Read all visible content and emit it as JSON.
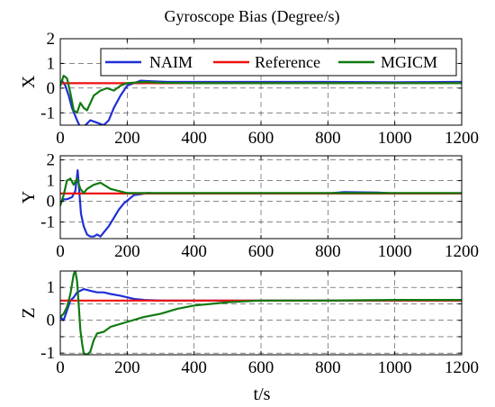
{
  "title": "Gyroscope Bias (Degree/s)",
  "xlabel": "t/s",
  "legend": {
    "placement": "top-right",
    "entries": [
      "NAIM",
      "Reference",
      "MGICM"
    ]
  },
  "colors": {
    "NAIM": "#1f2fd6",
    "Reference": "#ee1111",
    "MGICM": "#117a11"
  },
  "chart_data": [
    {
      "type": "line",
      "ylabel": "X",
      "xlim": [
        0,
        1200
      ],
      "ylim": [
        -1.5,
        2
      ],
      "xticks": [
        0,
        200,
        400,
        600,
        800,
        1000,
        1200
      ],
      "yticks": [
        -1,
        0,
        1,
        2
      ],
      "grid": true,
      "series": [
        {
          "name": "NAIM",
          "x": [
            0,
            5,
            15,
            25,
            35,
            50,
            60,
            75,
            90,
            110,
            130,
            145,
            160,
            180,
            200,
            220,
            240,
            270,
            320,
            400,
            600,
            800,
            1000,
            1200
          ],
          "y": [
            0.1,
            0.3,
            0.1,
            -0.3,
            -0.8,
            -1.3,
            -1.6,
            -1.5,
            -1.3,
            -1.4,
            -1.5,
            -1.3,
            -0.8,
            -0.3,
            0.1,
            0.2,
            0.3,
            0.28,
            0.25,
            0.25,
            0.25,
            0.25,
            0.24,
            0.25
          ]
        },
        {
          "name": "Reference",
          "x": [
            0,
            1200
          ],
          "y": [
            0.2,
            0.2
          ]
        },
        {
          "name": "MGICM",
          "x": [
            0,
            10,
            20,
            30,
            40,
            50,
            60,
            70,
            80,
            100,
            120,
            140,
            160,
            180,
            200,
            250,
            300,
            400,
            600,
            800,
            1000,
            1200
          ],
          "y": [
            0.1,
            0.5,
            0.4,
            -0.2,
            -0.9,
            -1.0,
            -0.6,
            -0.8,
            -0.9,
            -0.3,
            -0.1,
            0.0,
            -0.1,
            0.1,
            0.2,
            0.25,
            0.22,
            0.2,
            0.2,
            0.2,
            0.2,
            0.2
          ]
        }
      ]
    },
    {
      "type": "line",
      "ylabel": "Y",
      "xlim": [
        0,
        1200
      ],
      "ylim": [
        -1.8,
        2.2
      ],
      "xticks": [
        0,
        200,
        400,
        600,
        800,
        1000,
        1200
      ],
      "yticks": [
        -1,
        0,
        1,
        2
      ],
      "grid": true,
      "series": [
        {
          "name": "NAIM",
          "x": [
            0,
            10,
            20,
            35,
            45,
            52,
            58,
            62,
            70,
            80,
            90,
            100,
            110,
            120,
            130,
            145,
            160,
            175,
            190,
            205,
            220,
            240,
            260,
            300,
            400,
            800,
            850,
            950,
            1000,
            1200
          ],
          "y": [
            -0.1,
            0.1,
            0.1,
            0.2,
            0.5,
            1.5,
            0.2,
            -0.6,
            -1.2,
            -1.6,
            -1.7,
            -1.7,
            -1.6,
            -1.7,
            -1.5,
            -1.2,
            -0.8,
            -0.4,
            -0.1,
            0.1,
            0.3,
            0.35,
            0.4,
            0.38,
            0.38,
            0.38,
            0.45,
            0.42,
            0.38,
            0.38
          ]
        },
        {
          "name": "Reference",
          "x": [
            0,
            1200
          ],
          "y": [
            0.38,
            0.38
          ]
        },
        {
          "name": "MGICM",
          "x": [
            0,
            10,
            20,
            30,
            40,
            50,
            60,
            70,
            80,
            100,
            120,
            150,
            200,
            300,
            500,
            800,
            1000,
            1200
          ],
          "y": [
            -0.2,
            0.3,
            1.0,
            1.1,
            0.8,
            1.1,
            0.6,
            0.4,
            0.6,
            0.8,
            0.9,
            0.6,
            0.4,
            0.4,
            0.4,
            0.4,
            0.4,
            0.4
          ]
        }
      ]
    },
    {
      "type": "line",
      "ylabel": "Z",
      "xlim": [
        0,
        1200
      ],
      "ylim": [
        -1.05,
        1.5
      ],
      "xticks": [
        0,
        200,
        400,
        600,
        800,
        1000,
        1200
      ],
      "yticks": [
        -1,
        -0.5,
        0,
        0.5,
        1
      ],
      "yticklabels": [
        "-1",
        "",
        "0",
        "",
        "1"
      ],
      "grid": true,
      "series": [
        {
          "name": "NAIM",
          "x": [
            0,
            10,
            20,
            30,
            40,
            50,
            60,
            70,
            90,
            110,
            130,
            150,
            180,
            200,
            220,
            250,
            300,
            400,
            600,
            800,
            1000,
            1200
          ],
          "y": [
            0.1,
            0.0,
            0.3,
            0.6,
            0.7,
            0.85,
            0.9,
            0.95,
            0.9,
            0.85,
            0.85,
            0.8,
            0.75,
            0.7,
            0.65,
            0.62,
            0.6,
            0.6,
            0.6,
            0.6,
            0.6,
            0.6
          ]
        },
        {
          "name": "Reference",
          "x": [
            0,
            1200
          ],
          "y": [
            0.6,
            0.6
          ]
        },
        {
          "name": "MGICM",
          "x": [
            0,
            10,
            20,
            30,
            40,
            45,
            50,
            55,
            60,
            65,
            70,
            80,
            90,
            100,
            110,
            130,
            150,
            200,
            250,
            300,
            350,
            400,
            450,
            500,
            600,
            800,
            1000,
            1200
          ],
          "y": [
            0.1,
            0.2,
            0.4,
            0.8,
            1.4,
            1.5,
            1.2,
            0.5,
            -0.3,
            -0.7,
            -1.0,
            -1.05,
            -0.95,
            -0.6,
            -0.4,
            -0.35,
            -0.2,
            -0.05,
            0.1,
            0.2,
            0.35,
            0.45,
            0.5,
            0.55,
            0.6,
            0.6,
            0.62,
            0.62
          ]
        }
      ]
    }
  ]
}
